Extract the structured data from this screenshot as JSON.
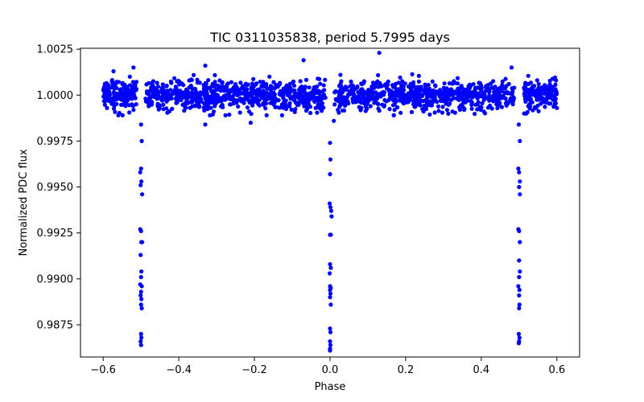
{
  "chart_data": {
    "type": "scatter",
    "title": "TIC 0311035838, period 5.7995 days",
    "xlabel": "Phase",
    "ylabel": "Normalized PDC flux",
    "xlim": [
      -0.66,
      0.66
    ],
    "ylim": [
      0.98575,
      1.00255
    ],
    "x_ticks": [
      -0.6,
      -0.4,
      -0.2,
      0.0,
      0.2,
      0.4,
      0.6
    ],
    "x_tick_labels": [
      "−0.6",
      "−0.4",
      "−0.2",
      "0.0",
      "0.2",
      "0.4",
      "0.6"
    ],
    "y_ticks": [
      0.9875,
      0.99,
      0.9925,
      0.995,
      0.9975,
      1.0,
      1.0025
    ],
    "y_tick_labels": [
      "0.9875",
      "0.9900",
      "0.9925",
      "0.9950",
      "0.9975",
      "1.0000",
      "1.0025"
    ],
    "grid": false,
    "marker_color": "#0000ff",
    "series": [
      {
        "name": "PDC flux",
        "data_range": [
          -0.6,
          0.6
        ],
        "baseline": 1.0,
        "baseline_scatter": 0.0004,
        "n_baseline_points": 1800,
        "transits": [
          {
            "phase": -0.5,
            "depth_min": 0.9864
          },
          {
            "phase": 0.0,
            "depth_min": 0.9861
          },
          {
            "phase": 0.5,
            "depth_min": 0.9865
          }
        ],
        "transit_points": [
          [
            -0.5,
            0.9984
          ],
          [
            -0.498,
            0.9975
          ],
          [
            -0.5,
            0.996
          ],
          [
            -0.502,
            0.9958
          ],
          [
            -0.499,
            0.9953
          ],
          [
            -0.501,
            0.9951
          ],
          [
            -0.497,
            0.9946
          ],
          [
            -0.502,
            0.9927
          ],
          [
            -0.5,
            0.9926
          ],
          [
            -0.499,
            0.992
          ],
          [
            -0.497,
            0.992
          ],
          [
            -0.501,
            0.9913
          ],
          [
            -0.499,
            0.9904
          ],
          [
            -0.5,
            0.9901
          ],
          [
            -0.502,
            0.9897
          ],
          [
            -0.498,
            0.9896
          ],
          [
            -0.5,
            0.9893
          ],
          [
            -0.501,
            0.9891
          ],
          [
            -0.499,
            0.9889
          ],
          [
            -0.5,
            0.9886
          ],
          [
            -0.498,
            0.9884
          ],
          [
            -0.5,
            0.987
          ],
          [
            -0.499,
            0.9868
          ],
          [
            -0.501,
            0.9866
          ],
          [
            -0.5,
            0.9864
          ],
          [
            0.0,
            0.9974
          ],
          [
            0.001,
            0.9965
          ],
          [
            0.0,
            0.9957
          ],
          [
            -0.001,
            0.9941
          ],
          [
            0.001,
            0.9939
          ],
          [
            0.003,
            0.9937
          ],
          [
            0.004,
            0.9934
          ],
          [
            0.0,
            0.9924
          ],
          [
            0.002,
            0.9924
          ],
          [
            0.0,
            0.9908
          ],
          [
            0.002,
            0.9906
          ],
          [
            -0.001,
            0.9903
          ],
          [
            0.0,
            0.9896
          ],
          [
            0.002,
            0.9895
          ],
          [
            0.0,
            0.9894
          ],
          [
            0.001,
            0.9892
          ],
          [
            0.0,
            0.989
          ],
          [
            0.002,
            0.9886
          ],
          [
            0.0,
            0.9873
          ],
          [
            0.001,
            0.9871
          ],
          [
            0.0,
            0.9866
          ],
          [
            0.001,
            0.9864
          ],
          [
            0.0,
            0.9862
          ],
          [
            0.0,
            0.9861
          ],
          [
            0.499,
            0.9984
          ],
          [
            0.502,
            0.9975
          ],
          [
            0.498,
            0.996
          ],
          [
            0.5,
            0.9958
          ],
          [
            0.502,
            0.9953
          ],
          [
            0.5,
            0.995
          ],
          [
            0.502,
            0.9946
          ],
          [
            0.498,
            0.9927
          ],
          [
            0.5,
            0.9926
          ],
          [
            0.502,
            0.992
          ],
          [
            0.5,
            0.991
          ],
          [
            0.502,
            0.9904
          ],
          [
            0.5,
            0.9901
          ],
          [
            0.498,
            0.9896
          ],
          [
            0.501,
            0.9894
          ],
          [
            0.5,
            0.9891
          ],
          [
            0.501,
            0.9886
          ],
          [
            0.5,
            0.9884
          ],
          [
            0.499,
            0.987
          ],
          [
            0.501,
            0.9868
          ],
          [
            0.5,
            0.9866
          ],
          [
            0.499,
            0.9865
          ]
        ],
        "outlier_points": [
          [
            0.13,
            1.0023
          ],
          [
            -0.07,
            1.0019
          ],
          [
            -0.52,
            1.0015
          ],
          [
            0.48,
            1.0015
          ],
          [
            -0.33,
            1.0016
          ],
          [
            -0.33,
            0.9984
          ],
          [
            -0.59,
            0.9993
          ],
          [
            0.6,
            0.9993
          ],
          [
            -0.21,
            0.9985
          ],
          [
            0.01,
            0.9986
          ]
        ]
      }
    ]
  }
}
